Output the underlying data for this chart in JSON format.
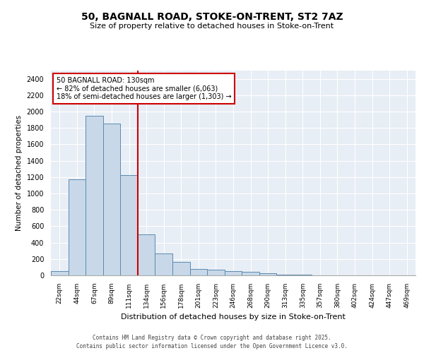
{
  "title1": "50, BAGNALL ROAD, STOKE-ON-TRENT, ST2 7AZ",
  "title2": "Size of property relative to detached houses in Stoke-on-Trent",
  "xlabel": "Distribution of detached houses by size in Stoke-on-Trent",
  "ylabel": "Number of detached properties",
  "annotation_line1": "50 BAGNALL ROAD: 130sqm",
  "annotation_line2": "← 82% of detached houses are smaller (6,063)",
  "annotation_line3": "18% of semi-detached houses are larger (1,303) →",
  "footer1": "Contains HM Land Registry data © Crown copyright and database right 2025.",
  "footer2": "Contains public sector information licensed under the Open Government Licence v3.0.",
  "bar_color": "#c8d8e8",
  "bar_edge_color": "#5a8ab0",
  "vline_color": "#cc0000",
  "annotation_box_color": "#cc0000",
  "background_color": "#e8eef5",
  "categories": [
    "22sqm",
    "44sqm",
    "67sqm",
    "89sqm",
    "111sqm",
    "134sqm",
    "156sqm",
    "178sqm",
    "201sqm",
    "223sqm",
    "246sqm",
    "268sqm",
    "290sqm",
    "313sqm",
    "335sqm",
    "357sqm",
    "380sqm",
    "402sqm",
    "424sqm",
    "447sqm",
    "469sqm"
  ],
  "values": [
    55,
    1175,
    1950,
    1850,
    1225,
    500,
    270,
    160,
    80,
    65,
    55,
    45,
    25,
    10,
    5,
    3,
    2,
    1,
    1,
    1,
    1
  ],
  "ylim": [
    0,
    2500
  ],
  "yticks": [
    0,
    200,
    400,
    600,
    800,
    1000,
    1200,
    1400,
    1600,
    1800,
    2000,
    2200,
    2400
  ],
  "vline_x": 4.5,
  "figsize": [
    6.0,
    5.0
  ],
  "dpi": 100
}
